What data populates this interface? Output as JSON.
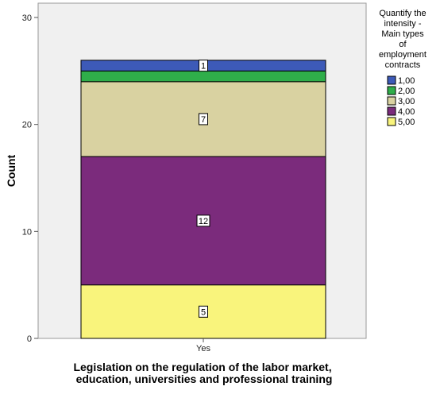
{
  "chart_data": {
    "type": "bar",
    "stacked": true,
    "categories": [
      "Yes"
    ],
    "series": [
      {
        "name": "1,00",
        "values": [
          1
        ],
        "color": "#3d5ab8"
      },
      {
        "name": "2,00",
        "values": [
          1
        ],
        "color": "#2fae4a"
      },
      {
        "name": "3,00",
        "values": [
          7
        ],
        "color": "#d9d2a1"
      },
      {
        "name": "4,00",
        "values": [
          12
        ],
        "color": "#7b2b7c"
      },
      {
        "name": "5,00",
        "values": [
          5
        ],
        "color": "#f9f47c"
      }
    ],
    "data_labels": [
      "1",
      "",
      "7",
      "12",
      "5"
    ],
    "title": "",
    "xlabel": "Legislation on the regulation of the labor market, education, universities and professional training",
    "xlabel_lines": [
      "Legislation on the regulation of the labor market,",
      "education, universities and professional training"
    ],
    "ylabel": "Count",
    "ylim": [
      0,
      30
    ],
    "yticks": [
      0,
      10,
      20,
      30
    ],
    "legend_title": "Quantify the intensity - Main types of employment contracts",
    "legend_title_lines": [
      "Quantify the",
      "intensity -",
      "Main types",
      "of",
      "employment",
      "contracts"
    ],
    "legend_position": "right",
    "grid": false,
    "plot_background": "#f0f0f0"
  }
}
